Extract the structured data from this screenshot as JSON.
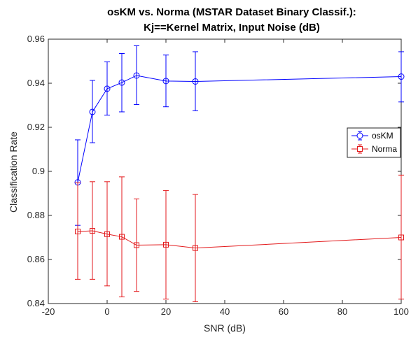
{
  "chart_data": {
    "type": "line",
    "title_line1": "osKM vs. Norma (MSTAR Dataset Binary Classif.):",
    "title_line2": "Kj==Kernel Matrix, Input Noise (dB)",
    "xlabel": "SNR (dB)",
    "ylabel": "Classification Rate",
    "xlim": [
      -20,
      100
    ],
    "ylim": [
      0.84,
      0.96
    ],
    "xticks": [
      -20,
      0,
      20,
      40,
      60,
      80,
      100
    ],
    "yticks": [
      0.84,
      0.86,
      0.88,
      0.9,
      0.92,
      0.94,
      0.96
    ],
    "xtick_labels": [
      "-20",
      "0",
      "20",
      "40",
      "60",
      "80",
      "100"
    ],
    "ytick_labels": [
      "0.84",
      "0.86",
      "0.88",
      "0.9",
      "0.92",
      "0.94",
      "0.96"
    ],
    "grid": false,
    "legend_position": "right",
    "error_bars": true,
    "x": [
      -10,
      -5,
      0,
      5,
      10,
      20,
      30,
      100
    ],
    "series": [
      {
        "name": "osKM",
        "color": "#0000ff",
        "marker": "circle",
        "values": [
          0.895,
          0.927,
          0.9375,
          0.9403,
          0.9435,
          0.941,
          0.9408,
          0.943
        ],
        "err_low": [
          0.8755,
          0.913,
          0.9255,
          0.927,
          0.9303,
          0.9293,
          0.9275,
          0.9315
        ],
        "err_high": [
          0.9143,
          0.9413,
          0.9497,
          0.9535,
          0.957,
          0.9528,
          0.9543,
          0.9543
        ]
      },
      {
        "name": "Norma",
        "color": "#e31a1c",
        "marker": "square",
        "values": [
          0.8727,
          0.873,
          0.8715,
          0.8703,
          0.8665,
          0.8667,
          0.8652,
          0.87
        ],
        "err_low": [
          0.851,
          0.851,
          0.848,
          0.843,
          0.8455,
          0.842,
          0.8408,
          0.842
        ],
        "err_high": [
          0.8948,
          0.8953,
          0.8953,
          0.8975,
          0.8875,
          0.8913,
          0.8895,
          0.8983
        ]
      }
    ]
  }
}
